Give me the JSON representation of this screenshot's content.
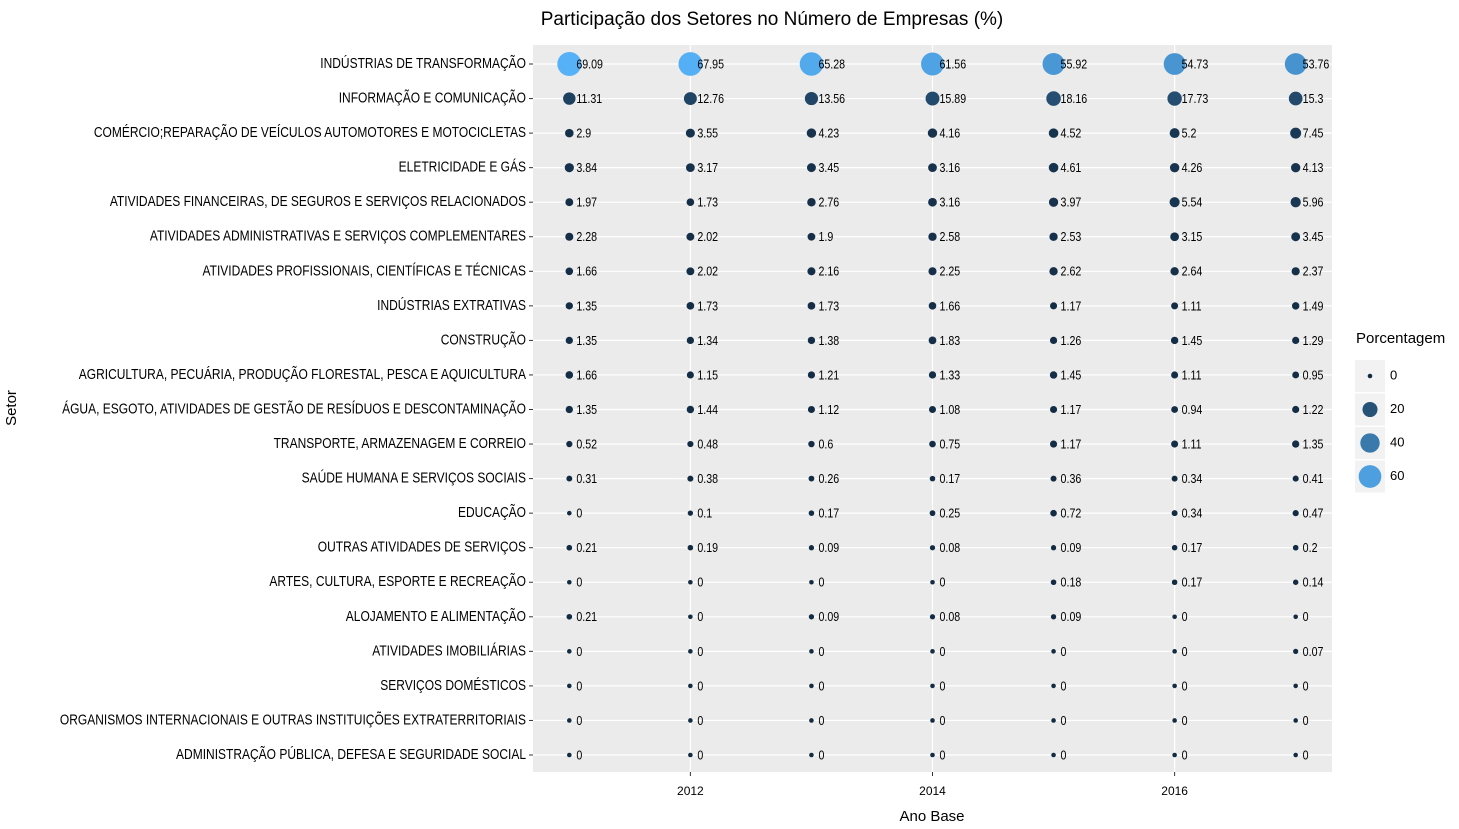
{
  "chart_data": {
    "type": "bubble",
    "title": "Participação dos Setores no Número de Empresas  (%)",
    "x_label": "Ano Base",
    "y_label": "Setor",
    "x": [
      2011,
      2012,
      2013,
      2014,
      2015,
      2016,
      2017
    ],
    "xlim": [
      2010.7,
      2017.3
    ],
    "xticks": [
      2012,
      2014,
      2016
    ],
    "categories": [
      "INDÚSTRIAS DE TRANSFORMAÇÃO",
      "INFORMAÇÃO E COMUNICAÇÃO",
      "COMÉRCIO;REPARAÇÃO DE VEÍCULOS AUTOMOTORES E MOTOCICLETAS",
      "ELETRICIDADE E GÁS",
      "ATIVIDADES FINANCEIRAS, DE SEGUROS E SERVIÇOS RELACIONADOS",
      "ATIVIDADES ADMINISTRATIVAS E SERVIÇOS COMPLEMENTARES",
      "ATIVIDADES PROFISSIONAIS, CIENTÍFICAS E TÉCNICAS",
      "INDÚSTRIAS EXTRATIVAS",
      "CONSTRUÇÃO",
      "AGRICULTURA, PECUÁRIA, PRODUÇÃO FLORESTAL, PESCA E AQUICULTURA",
      "ÁGUA, ESGOTO, ATIVIDADES DE GESTÃO DE RESÍDUOS E DESCONTAMINAÇÃO",
      "TRANSPORTE, ARMAZENAGEM E CORREIO",
      "SAÚDE HUMANA E SERVIÇOS SOCIAIS",
      "EDUCAÇÃO",
      "OUTRAS ATIVIDADES DE SERVIÇOS",
      "ARTES, CULTURA, ESPORTE E RECREAÇÃO",
      "ALOJAMENTO E ALIMENTAÇÃO",
      "ATIVIDADES IMOBILIÁRIAS",
      "SERVIÇOS DOMÉSTICOS",
      "ORGANISMOS INTERNACIONAIS E OUTRAS INSTITUIÇÕES EXTRATERRITORIAIS",
      "ADMINISTRAÇÃO PÚBLICA, DEFESA E SEGURIDADE SOCIAL"
    ],
    "values": [
      [
        69.09,
        67.95,
        65.28,
        61.56,
        55.92,
        54.73,
        53.76
      ],
      [
        11.31,
        12.76,
        13.56,
        15.89,
        18.16,
        17.73,
        15.3
      ],
      [
        2.9,
        3.55,
        4.23,
        4.16,
        4.52,
        5.2,
        7.45
      ],
      [
        3.84,
        3.17,
        3.45,
        3.16,
        4.61,
        4.26,
        4.13
      ],
      [
        1.97,
        1.73,
        2.76,
        3.16,
        3.97,
        5.54,
        5.96
      ],
      [
        2.28,
        2.02,
        1.9,
        2.58,
        2.53,
        3.15,
        3.45
      ],
      [
        1.66,
        2.02,
        2.16,
        2.25,
        2.62,
        2.64,
        2.37
      ],
      [
        1.35,
        1.73,
        1.73,
        1.66,
        1.17,
        1.11,
        1.49
      ],
      [
        1.35,
        1.34,
        1.38,
        1.83,
        1.26,
        1.45,
        1.29
      ],
      [
        1.66,
        1.15,
        1.21,
        1.33,
        1.45,
        1.11,
        0.95
      ],
      [
        1.35,
        1.44,
        1.12,
        1.08,
        1.17,
        0.94,
        1.22
      ],
      [
        0.52,
        0.48,
        0.6,
        0.75,
        1.17,
        1.11,
        1.35
      ],
      [
        0.31,
        0.38,
        0.26,
        0.17,
        0.36,
        0.34,
        0.41
      ],
      [
        0,
        0.1,
        0.17,
        0.25,
        0.72,
        0.34,
        0.47
      ],
      [
        0.21,
        0.19,
        0.09,
        0.08,
        0.09,
        0.17,
        0.2
      ],
      [
        0,
        0,
        0,
        0,
        0.18,
        0.17,
        0.14
      ],
      [
        0.21,
        0,
        0.09,
        0.08,
        0.09,
        0,
        0
      ],
      [
        0,
        0,
        0,
        0,
        0,
        0,
        0.07
      ],
      [
        0,
        0,
        0,
        0,
        0,
        0,
        0
      ],
      [
        0,
        0,
        0,
        0,
        0,
        0,
        0
      ],
      [
        0,
        0,
        0,
        0,
        0,
        0,
        0
      ]
    ],
    "color_low": "#132B43",
    "color_high": "#56B1F7",
    "grid": true,
    "legend_position": "right",
    "size_legend": {
      "title": "Porcentagem",
      "values": [
        0,
        20,
        40,
        60
      ]
    }
  }
}
